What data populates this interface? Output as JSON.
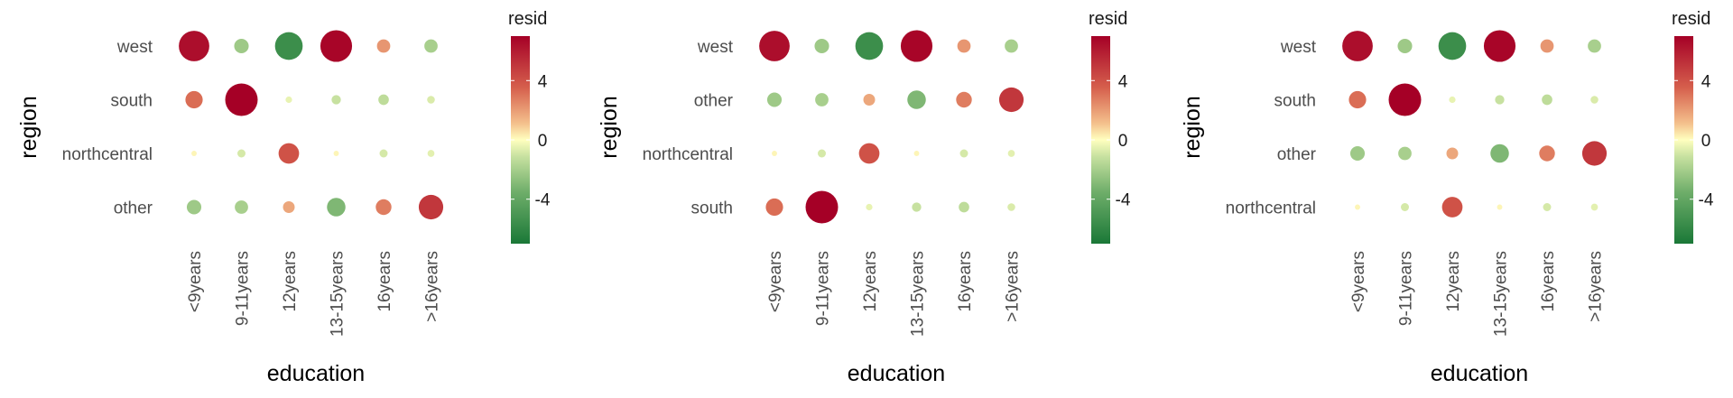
{
  "colors": {
    "scale_low": "#1a7837",
    "scale_mid": "#ffffbf",
    "scale_high": "#a50026"
  },
  "chart_data": [
    {
      "type": "scatter",
      "xlabel": "education",
      "ylabel": "region",
      "x_categories": [
        "<9years",
        "9-11years",
        "12years",
        "13-15years",
        "16years",
        ">16years"
      ],
      "y_categories": [
        "west",
        "south",
        "northcentral",
        "other"
      ],
      "legend": {
        "title": "resid",
        "ticks": [
          4,
          0,
          -4
        ],
        "range": [
          -7,
          7
        ],
        "placement": "right"
      },
      "values": [
        [
          6.5,
          -2.5,
          -5.8,
          6.8,
          2.2,
          -2.2
        ],
        [
          3.2,
          7.0,
          -0.5,
          -1.2,
          -1.5,
          -0.8
        ],
        [
          0.2,
          -0.9,
          4.0,
          0.2,
          -0.9,
          -0.6
        ],
        [
          -2.5,
          -2.2,
          1.8,
          -3.5,
          2.8,
          5.0
        ]
      ]
    },
    {
      "type": "scatter",
      "xlabel": "education",
      "ylabel": "region",
      "x_categories": [
        "<9years",
        "9-11years",
        "12years",
        "13-15years",
        "16years",
        ">16years"
      ],
      "y_categories": [
        "west",
        "other",
        "northcentral",
        "south"
      ],
      "legend": {
        "title": "resid",
        "ticks": [
          4,
          0,
          -4
        ],
        "range": [
          -7,
          7
        ],
        "placement": "right"
      },
      "values": [
        [
          6.5,
          -2.5,
          -5.8,
          6.8,
          2.2,
          -2.2
        ],
        [
          -2.5,
          -2.2,
          1.8,
          -3.5,
          2.8,
          5.0
        ],
        [
          0.2,
          -0.9,
          4.0,
          0.2,
          -0.9,
          -0.6
        ],
        [
          3.2,
          7.0,
          -0.5,
          -1.2,
          -1.5,
          -0.8
        ]
      ]
    },
    {
      "type": "scatter",
      "xlabel": "education",
      "ylabel": "region",
      "x_categories": [
        "<9years",
        "9-11years",
        "12years",
        "13-15years",
        "16years",
        ">16years"
      ],
      "y_categories": [
        "west",
        "south",
        "other",
        "northcentral"
      ],
      "legend": {
        "title": "resid",
        "ticks": [
          4,
          0,
          -4
        ],
        "range": [
          -7,
          7
        ],
        "placement": "right"
      },
      "values": [
        [
          6.5,
          -2.5,
          -5.8,
          6.8,
          2.2,
          -2.2
        ],
        [
          3.2,
          7.0,
          -0.5,
          -1.2,
          -1.5,
          -0.8
        ],
        [
          -2.5,
          -2.2,
          1.8,
          -3.5,
          2.8,
          5.0
        ],
        [
          0.2,
          -0.9,
          4.0,
          0.2,
          -0.9,
          -0.6
        ]
      ]
    }
  ]
}
